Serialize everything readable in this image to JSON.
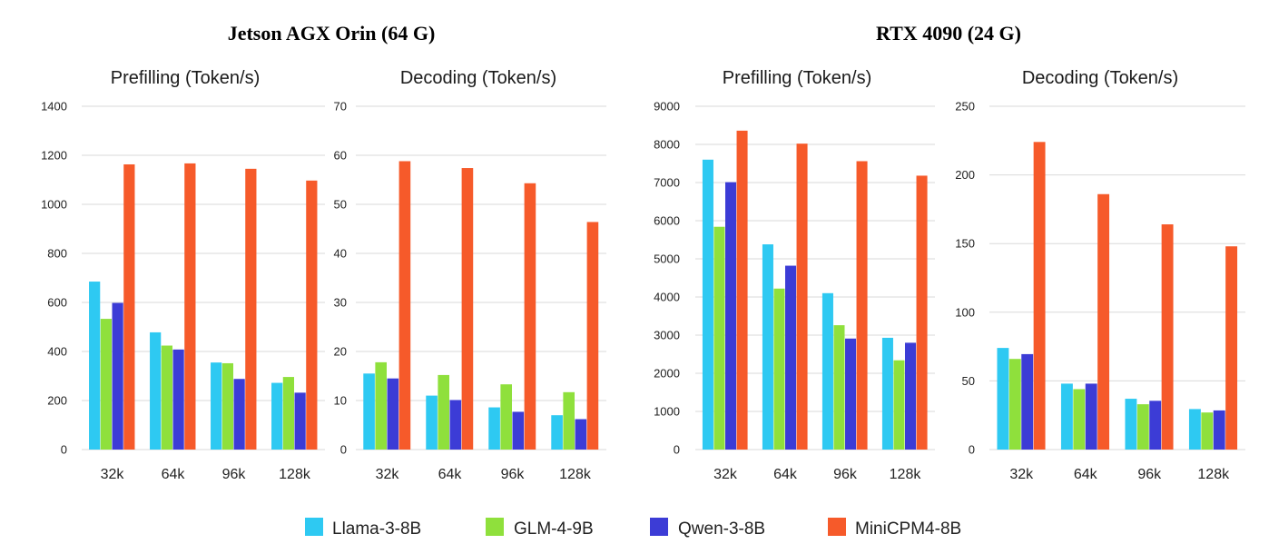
{
  "group_titles": [
    "Jetson AGX Orin (64 G)",
    "RTX 4090 (24 G)"
  ],
  "legend": [
    {
      "name": "Llama-3-8B",
      "color": "#2ec9f2"
    },
    {
      "name": "GLM-4-9B",
      "color": "#8fe03c"
    },
    {
      "name": "Qwen-3-8B",
      "color": "#3c3cd6"
    },
    {
      "name": "MiniCPM4-8B",
      "color": "#f65a2a"
    }
  ],
  "chart_data": [
    {
      "type": "bar",
      "title": "Prefilling (Token/s)",
      "categories": [
        "32k",
        "64k",
        "96k",
        "128k"
      ],
      "ylim": [
        0,
        1400
      ],
      "yticks": [
        0,
        200,
        400,
        600,
        800,
        1000,
        1200,
        1400
      ],
      "series": [
        {
          "name": "Llama-3-8B",
          "values": [
            685,
            478,
            355,
            272
          ]
        },
        {
          "name": "GLM-4-9B",
          "values": [
            533,
            424,
            352,
            296
          ]
        },
        {
          "name": "Qwen-3-8B",
          "values": [
            598,
            408,
            288,
            232
          ]
        },
        {
          "name": "MiniCPM4-8B",
          "values": [
            1163,
            1167,
            1145,
            1097
          ]
        }
      ]
    },
    {
      "type": "bar",
      "title": "Decoding (Token/s)",
      "categories": [
        "32k",
        "64k",
        "96k",
        "128k"
      ],
      "ylim": [
        0,
        70
      ],
      "yticks": [
        0,
        10,
        20,
        30,
        40,
        50,
        60,
        70
      ],
      "series": [
        {
          "name": "Llama-3-8B",
          "values": [
            15.5,
            11,
            8.6,
            7
          ]
        },
        {
          "name": "GLM-4-9B",
          "values": [
            17.8,
            15.2,
            13.3,
            11.7
          ]
        },
        {
          "name": "Qwen-3-8B",
          "values": [
            14.5,
            10.1,
            7.7,
            6.2
          ]
        },
        {
          "name": "MiniCPM4-8B",
          "values": [
            58.8,
            57.4,
            54.3,
            46.4
          ]
        }
      ]
    },
    {
      "type": "bar",
      "title": "Prefilling (Token/s)",
      "categories": [
        "32k",
        "64k",
        "96k",
        "128k"
      ],
      "ylim": [
        0,
        9000
      ],
      "yticks": [
        0,
        1000,
        2000,
        3000,
        4000,
        5000,
        6000,
        7000,
        8000,
        9000
      ],
      "series": [
        {
          "name": "Llama-3-8B",
          "values": [
            7600,
            5380,
            4100,
            2930
          ]
        },
        {
          "name": "GLM-4-9B",
          "values": [
            5840,
            4220,
            3260,
            2340
          ]
        },
        {
          "name": "Qwen-3-8B",
          "values": [
            7010,
            4820,
            2910,
            2800
          ]
        },
        {
          "name": "MiniCPM4-8B",
          "values": [
            8360,
            8020,
            7560,
            7180
          ]
        }
      ]
    },
    {
      "type": "bar",
      "title": "Decoding (Token/s)",
      "categories": [
        "32k",
        "64k",
        "96k",
        "128k"
      ],
      "ylim": [
        0,
        250
      ],
      "yticks": [
        0,
        50,
        100,
        150,
        200,
        250
      ],
      "series": [
        {
          "name": "Llama-3-8B",
          "values": [
            74,
            48,
            37,
            29.5
          ]
        },
        {
          "name": "GLM-4-9B",
          "values": [
            66,
            44,
            33,
            27
          ]
        },
        {
          "name": "Qwen-3-8B",
          "values": [
            69.5,
            48,
            35.5,
            28.5
          ]
        },
        {
          "name": "MiniCPM4-8B",
          "values": [
            224,
            186,
            164,
            148
          ]
        }
      ]
    }
  ]
}
